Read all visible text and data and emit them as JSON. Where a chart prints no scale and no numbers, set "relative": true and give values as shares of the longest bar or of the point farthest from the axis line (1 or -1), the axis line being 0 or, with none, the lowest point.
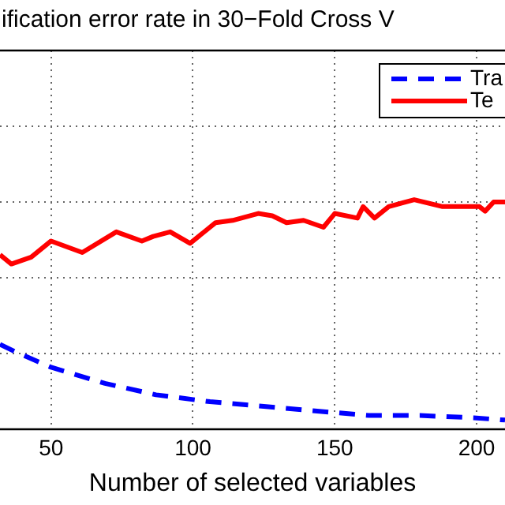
{
  "chart_data": {
    "type": "line",
    "title": "ification error rate in 30−Fold Cross V",
    "xlabel": "Number of selected variables",
    "relative": true,
    "xlim": [
      32,
      210
    ],
    "xticks": [
      50,
      100,
      150,
      200
    ],
    "grid": true,
    "legend": "top right",
    "marker": "none",
    "series": [
      {
        "name": "Tra",
        "color": "#0000ff",
        "line_style": "dashed",
        "x": [
          32,
          37,
          50,
          69,
          87,
          106,
          125,
          143,
          162,
          180,
          199,
          210
        ],
        "values": [
          0.37,
          0.34,
          0.27,
          0.2,
          0.15,
          0.12,
          0.1,
          0.08,
          0.06,
          0.06,
          0.05,
          0.04
        ]
      },
      {
        "name": "Te",
        "color": "#ff0000",
        "line_style": "solid",
        "x": [
          32,
          36,
          43,
          50,
          61,
          73,
          82,
          86,
          92,
          99,
          108,
          114,
          123,
          128,
          133,
          139,
          146,
          150,
          158,
          160,
          164,
          169,
          178,
          188,
          193,
          201,
          203,
          206,
          210
        ],
        "values": [
          0.76,
          0.72,
          0.75,
          0.82,
          0.77,
          0.86,
          0.82,
          0.84,
          0.86,
          0.81,
          0.9,
          0.91,
          0.94,
          0.93,
          0.9,
          0.91,
          0.88,
          0.94,
          0.92,
          0.97,
          0.92,
          0.97,
          1.0,
          0.97,
          0.97,
          0.97,
          0.95,
          0.99,
          0.99
        ]
      }
    ]
  }
}
